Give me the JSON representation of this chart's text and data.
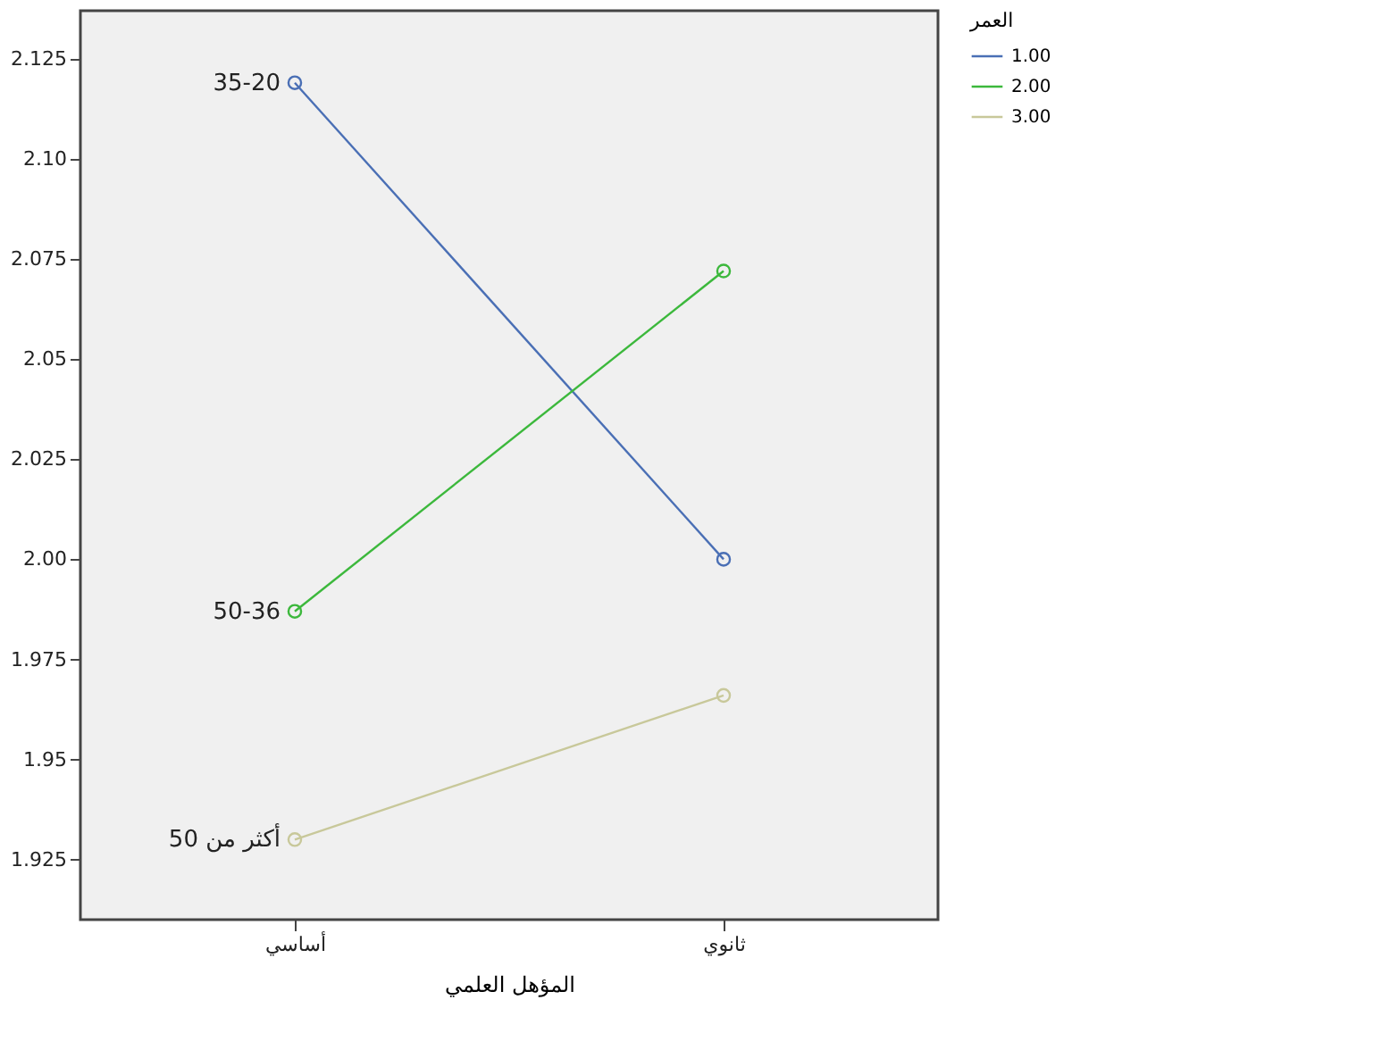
{
  "chart_data": {
    "type": "line",
    "xlabel": "المؤهل العلمي",
    "legend_title": "العمر",
    "categories": [
      "أساسي",
      "ثانوي"
    ],
    "series": [
      {
        "name": "1.00",
        "color": "#4a6fb5",
        "values": [
          2.119,
          2.0
        ]
      },
      {
        "name": "2.00",
        "color": "#3cb83c",
        "values": [
          1.987,
          2.072
        ]
      },
      {
        "name": "3.00",
        "color": "#c8c89a",
        "values": [
          1.93,
          1.966
        ]
      }
    ],
    "ylim": [
      1.91,
      2.137
    ],
    "yticks": [
      {
        "value": 1.925,
        "label": "1.925"
      },
      {
        "value": 1.95,
        "label": "1.95"
      },
      {
        "value": 1.975,
        "label": "1.975"
      },
      {
        "value": 2.0,
        "label": "2.00"
      },
      {
        "value": 2.025,
        "label": "2.025"
      },
      {
        "value": 2.05,
        "label": "2.05"
      },
      {
        "value": 2.075,
        "label": "2.075"
      },
      {
        "value": 2.1,
        "label": "2.10"
      },
      {
        "value": 2.125,
        "label": "2.125"
      }
    ],
    "annotations": [
      {
        "text": "35-20",
        "x": "أساسي",
        "y": 2.119
      },
      {
        "text": "50-36",
        "x": "أساسي",
        "y": 1.987
      },
      {
        "text": "أكثر من 50",
        "x": "أساسي",
        "y": 1.93
      }
    ],
    "marker": "circle",
    "grid": false,
    "legend": "top right"
  }
}
